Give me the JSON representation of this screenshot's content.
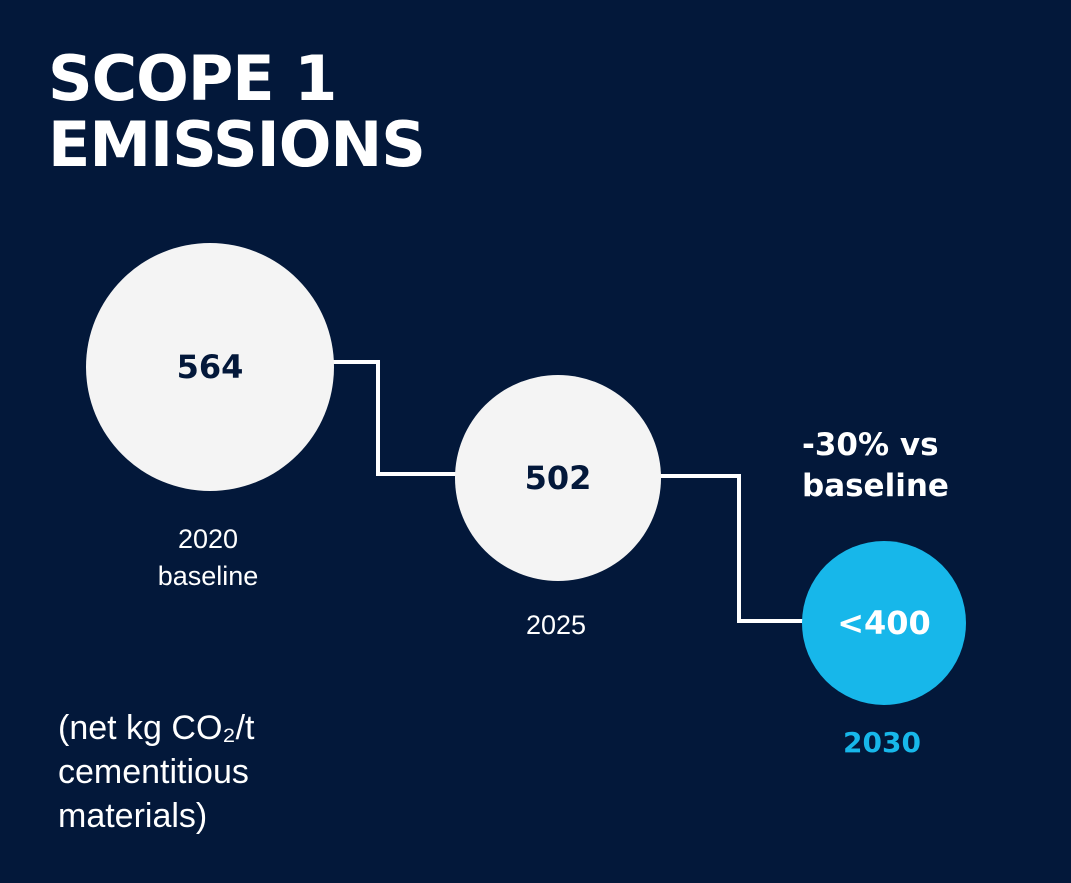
{
  "title": {
    "line1": "SCOPE 1",
    "line2": "EMISSIONS"
  },
  "unit_note": {
    "line1": "(net kg CO₂/t",
    "line2": "cementitious",
    "line3": "materials)"
  },
  "colors": {
    "background": "#03183a",
    "circle": "#f4f4f4",
    "target": "#17b7ea",
    "text_dark": "#03183a",
    "text_light": "#ffffff",
    "connector": "#ffffff"
  },
  "chart_data": {
    "type": "bubble-timeline",
    "unit": "net kg CO₂/t cementitious materials",
    "points": [
      {
        "year": 2020,
        "value": 564,
        "value_label": "564",
        "label_lines": [
          "2020",
          "baseline"
        ],
        "target": false
      },
      {
        "year": 2025,
        "value": 502,
        "value_label": "502",
        "label_lines": [
          "2025"
        ],
        "target": false
      },
      {
        "year": 2030,
        "value": 400,
        "value_label": "<400",
        "label_lines": [
          "2030"
        ],
        "target": true
      }
    ],
    "annotation": {
      "lines": [
        "-30% vs",
        "baseline"
      ]
    }
  }
}
